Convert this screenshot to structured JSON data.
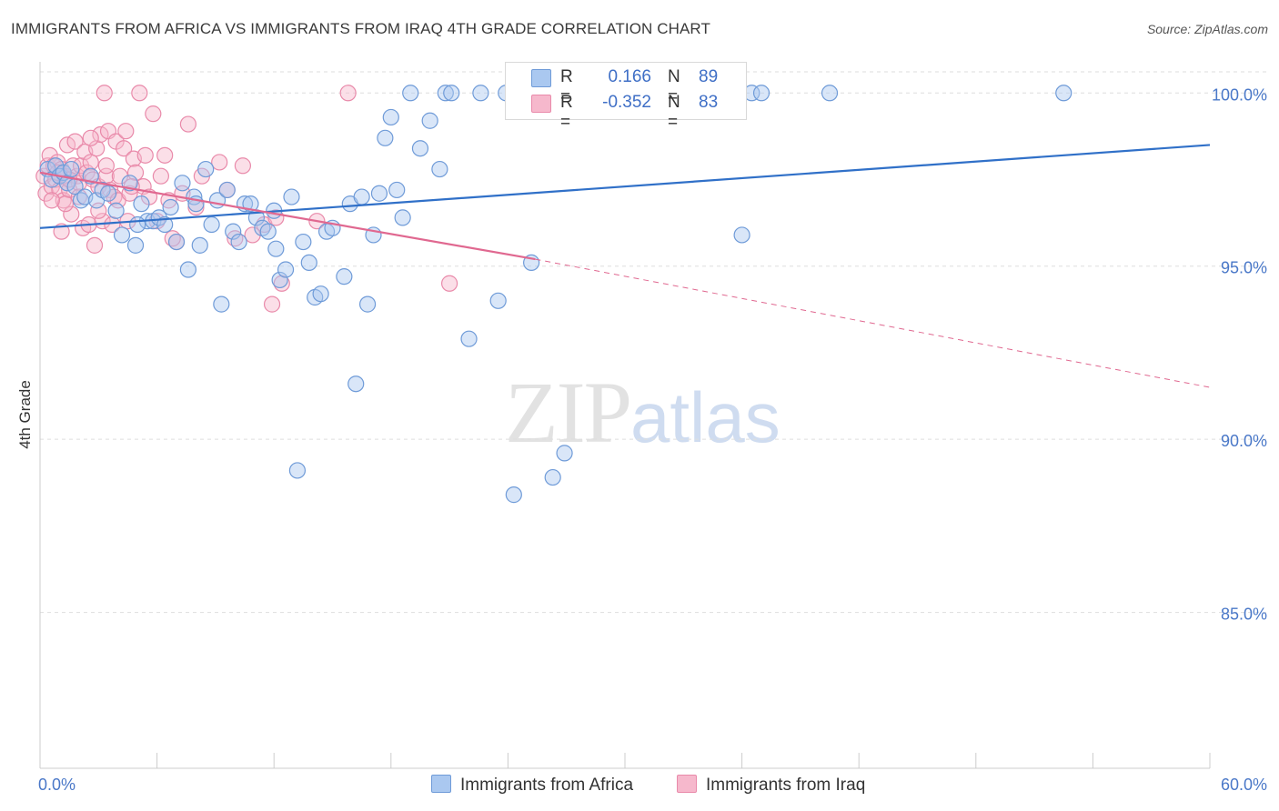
{
  "header": {
    "title": "IMMIGRANTS FROM AFRICA VS IMMIGRANTS FROM IRAQ 4TH GRADE CORRELATION CHART",
    "source": "Source: ZipAtlas.com"
  },
  "watermark": {
    "zip": "ZIP",
    "atlas": "atlas"
  },
  "legend": {
    "africa": {
      "r_label": "R =",
      "r_value": "0.166",
      "n_label": "N =",
      "n_value": "89"
    },
    "iraq": {
      "r_label": "R =",
      "r_value": "-0.352",
      "n_label": "N =",
      "n_value": "83"
    }
  },
  "bottom_legend": {
    "africa": "Immigrants from Africa",
    "iraq": "Immigrants from Iraq"
  },
  "colors": {
    "africa_fill": "#aac8f0",
    "africa_stroke": "#6f9bd8",
    "africa_line": "#3070c8",
    "iraq_fill": "#f6b8cc",
    "iraq_stroke": "#e98aaa",
    "iraq_line": "#e06890",
    "tick": "#4a78c8",
    "grid": "#dedede"
  },
  "chart_data": {
    "type": "scatter",
    "title": "IMMIGRANTS FROM AFRICA VS IMMIGRANTS FROM IRAQ 4TH GRADE CORRELATION CHART",
    "xlabel": "",
    "ylabel": "4th Grade",
    "xlim": [
      0,
      60
    ],
    "ylim": [
      80.5,
      100.9
    ],
    "x_tick_labels": [
      "0.0%",
      "60.0%"
    ],
    "y_ticks": [
      85,
      90,
      95,
      100
    ],
    "y_tick_labels": [
      "85.0%",
      "90.0%",
      "95.0%",
      "100.0%"
    ],
    "grid": true,
    "legend_position": "top-center",
    "series": [
      {
        "name": "Immigrants from Africa",
        "R": 0.166,
        "N": 89,
        "trend": {
          "x": [
            0,
            60
          ],
          "y": [
            96.1,
            98.5
          ]
        },
        "points": [
          [
            0.4,
            97.8
          ],
          [
            0.6,
            97.5
          ],
          [
            0.8,
            97.9
          ],
          [
            1.0,
            97.6
          ],
          [
            1.2,
            97.7
          ],
          [
            1.4,
            97.4
          ],
          [
            1.6,
            97.8
          ],
          [
            1.8,
            97.3
          ],
          [
            2.1,
            96.9
          ],
          [
            2.3,
            97.0
          ],
          [
            2.6,
            97.6
          ],
          [
            2.9,
            96.9
          ],
          [
            3.2,
            97.2
          ],
          [
            3.5,
            97.1
          ],
          [
            3.9,
            96.6
          ],
          [
            4.2,
            95.9
          ],
          [
            4.6,
            97.4
          ],
          [
            4.9,
            95.6
          ],
          [
            5.2,
            96.8
          ],
          [
            5.5,
            96.3
          ],
          [
            5.8,
            96.3
          ],
          [
            6.1,
            96.4
          ],
          [
            6.4,
            96.2
          ],
          [
            6.7,
            96.7
          ],
          [
            7.0,
            95.7
          ],
          [
            7.3,
            97.4
          ],
          [
            7.6,
            94.9
          ],
          [
            7.9,
            97.0
          ],
          [
            8.2,
            95.6
          ],
          [
            8.5,
            97.8
          ],
          [
            8.8,
            96.2
          ],
          [
            9.1,
            96.9
          ],
          [
            9.3,
            93.9
          ],
          [
            9.6,
            97.2
          ],
          [
            9.9,
            96.0
          ],
          [
            10.2,
            95.7
          ],
          [
            10.5,
            96.8
          ],
          [
            10.8,
            96.8
          ],
          [
            11.1,
            96.4
          ],
          [
            11.4,
            96.1
          ],
          [
            11.7,
            96.0
          ],
          [
            12.0,
            96.6
          ],
          [
            12.3,
            94.6
          ],
          [
            12.6,
            94.9
          ],
          [
            12.9,
            97.0
          ],
          [
            13.2,
            89.1
          ],
          [
            13.5,
            95.7
          ],
          [
            13.8,
            95.1
          ],
          [
            14.1,
            94.1
          ],
          [
            14.4,
            94.2
          ],
          [
            14.7,
            96.0
          ],
          [
            15.0,
            96.1
          ],
          [
            15.6,
            94.7
          ],
          [
            15.9,
            96.8
          ],
          [
            16.2,
            91.6
          ],
          [
            16.5,
            97.0
          ],
          [
            16.8,
            93.9
          ],
          [
            17.1,
            95.9
          ],
          [
            17.4,
            97.1
          ],
          [
            17.7,
            98.7
          ],
          [
            18.0,
            99.3
          ],
          [
            18.3,
            97.2
          ],
          [
            18.6,
            96.4
          ],
          [
            19.0,
            100.0
          ],
          [
            19.5,
            98.4
          ],
          [
            20.0,
            99.2
          ],
          [
            20.5,
            97.8
          ],
          [
            20.8,
            100.0
          ],
          [
            21.1,
            100.0
          ],
          [
            22.0,
            92.9
          ],
          [
            22.6,
            100.0
          ],
          [
            23.5,
            94.0
          ],
          [
            23.9,
            100.0
          ],
          [
            24.3,
            88.4
          ],
          [
            25.2,
            95.1
          ],
          [
            25.5,
            100.0
          ],
          [
            26.3,
            88.9
          ],
          [
            26.9,
            89.6
          ],
          [
            32.0,
            100.0
          ],
          [
            36.0,
            95.9
          ],
          [
            36.5,
            100.0
          ],
          [
            40.5,
            100.0
          ],
          [
            52.5,
            100.0
          ],
          [
            29.0,
            100.0
          ],
          [
            33.5,
            100.0
          ],
          [
            37.0,
            100.0
          ],
          [
            5.0,
            96.2
          ],
          [
            8.0,
            96.8
          ],
          [
            12.1,
            95.5
          ]
        ]
      },
      {
        "name": "Immigrants from Iraq",
        "R": -0.352,
        "N": 83,
        "trend": {
          "x": [
            0,
            25.4
          ],
          "y": [
            97.7,
            95.2
          ]
        },
        "trend_extension": {
          "x": [
            25.4,
            60
          ],
          "y": [
            95.2,
            91.5
          ]
        },
        "points": [
          [
            0.2,
            97.6
          ],
          [
            0.3,
            97.1
          ],
          [
            0.4,
            97.9
          ],
          [
            0.5,
            98.2
          ],
          [
            0.6,
            97.3
          ],
          [
            0.7,
            97.9
          ],
          [
            0.8,
            97.5
          ],
          [
            0.9,
            98.0
          ],
          [
            1.0,
            97.2
          ],
          [
            1.1,
            97.8
          ],
          [
            1.2,
            96.9
          ],
          [
            1.3,
            97.6
          ],
          [
            1.4,
            98.5
          ],
          [
            1.5,
            97.2
          ],
          [
            1.6,
            96.5
          ],
          [
            1.7,
            97.9
          ],
          [
            1.8,
            98.6
          ],
          [
            1.9,
            97.6
          ],
          [
            2.0,
            97.4
          ],
          [
            2.1,
            97.9
          ],
          [
            2.2,
            96.1
          ],
          [
            2.3,
            98.3
          ],
          [
            2.4,
            97.7
          ],
          [
            2.5,
            96.2
          ],
          [
            2.6,
            98.0
          ],
          [
            2.7,
            97.5
          ],
          [
            2.8,
            95.6
          ],
          [
            2.9,
            98.4
          ],
          [
            3.0,
            97.3
          ],
          [
            3.1,
            98.8
          ],
          [
            3.2,
            96.3
          ],
          [
            3.3,
            100.0
          ],
          [
            3.4,
            97.6
          ],
          [
            3.5,
            98.9
          ],
          [
            3.6,
            97.2
          ],
          [
            3.7,
            96.2
          ],
          [
            3.8,
            97.0
          ],
          [
            3.9,
            98.6
          ],
          [
            4.0,
            96.9
          ],
          [
            4.1,
            97.6
          ],
          [
            4.3,
            98.4
          ],
          [
            4.4,
            98.9
          ],
          [
            4.5,
            96.3
          ],
          [
            4.6,
            97.1
          ],
          [
            4.8,
            98.1
          ],
          [
            4.9,
            97.7
          ],
          [
            5.1,
            100.0
          ],
          [
            5.3,
            97.3
          ],
          [
            5.4,
            98.2
          ],
          [
            5.6,
            97.0
          ],
          [
            5.8,
            99.4
          ],
          [
            6.0,
            96.3
          ],
          [
            6.2,
            97.6
          ],
          [
            6.4,
            98.2
          ],
          [
            6.6,
            96.9
          ],
          [
            7.0,
            95.7
          ],
          [
            7.3,
            97.1
          ],
          [
            7.6,
            99.1
          ],
          [
            8.0,
            96.7
          ],
          [
            8.3,
            97.6
          ],
          [
            9.2,
            98.0
          ],
          [
            9.6,
            97.2
          ],
          [
            10.0,
            95.8
          ],
          [
            10.4,
            97.9
          ],
          [
            10.9,
            95.9
          ],
          [
            11.5,
            96.2
          ],
          [
            11.9,
            93.9
          ],
          [
            12.1,
            96.4
          ],
          [
            12.4,
            94.5
          ],
          [
            14.2,
            96.3
          ],
          [
            15.8,
            100.0
          ],
          [
            21.0,
            94.5
          ],
          [
            1.1,
            96.0
          ],
          [
            2.0,
            97.0
          ],
          [
            3.0,
            96.6
          ],
          [
            1.5,
            97.5
          ],
          [
            0.9,
            97.7
          ],
          [
            4.7,
            97.3
          ],
          [
            6.8,
            95.8
          ],
          [
            1.3,
            96.8
          ],
          [
            3.4,
            97.9
          ],
          [
            2.6,
            98.7
          ],
          [
            0.6,
            96.9
          ]
        ]
      }
    ]
  }
}
